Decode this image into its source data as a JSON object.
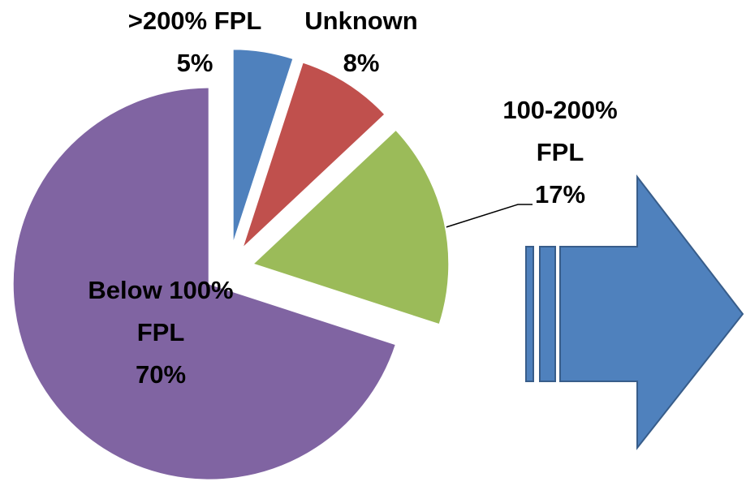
{
  "chart_data": {
    "type": "pie",
    "categories": [
      ">200% FPL",
      "Unknown",
      "100-200% FPL",
      "Below 100% FPL"
    ],
    "values": [
      5,
      8,
      17,
      70
    ],
    "value_labels": [
      "5%",
      "8%",
      "17%",
      "70%"
    ],
    "colors": [
      "#4f81bd",
      "#c0504d",
      "#9bbb59",
      "#8064a2"
    ]
  }
}
